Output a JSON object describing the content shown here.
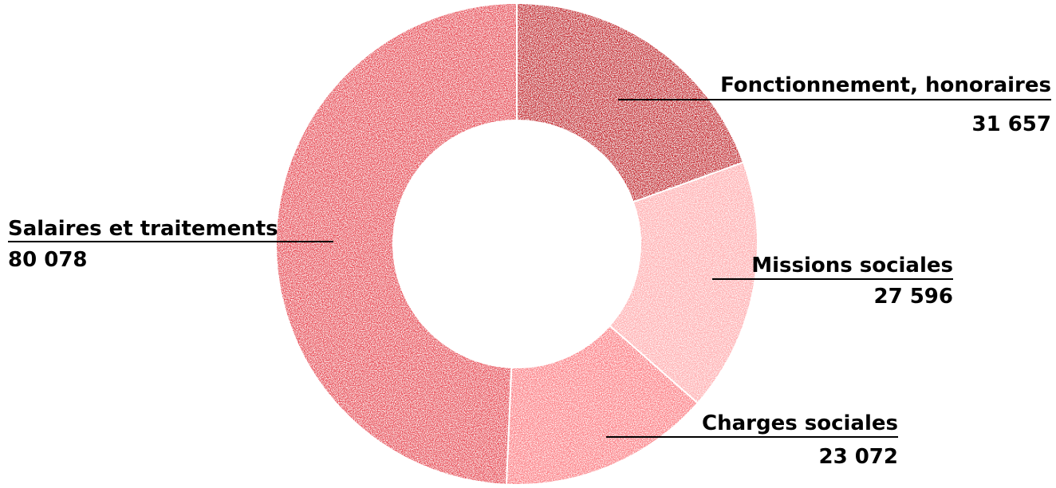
{
  "chart_data": {
    "type": "pie",
    "donut": true,
    "categories": [
      "Fonctionnement, honoraires",
      "Missions sociales",
      "Charges sociales",
      "Salaires et traitements"
    ],
    "values": [
      31657,
      27596,
      23072,
      80078
    ],
    "value_labels": [
      "31 657",
      "27 596",
      "23 072",
      "80 078"
    ],
    "colors": [
      "#C8272F",
      "#FFB0B2",
      "#FC8187",
      "#E9505A"
    ],
    "title": "",
    "legend": "none"
  }
}
